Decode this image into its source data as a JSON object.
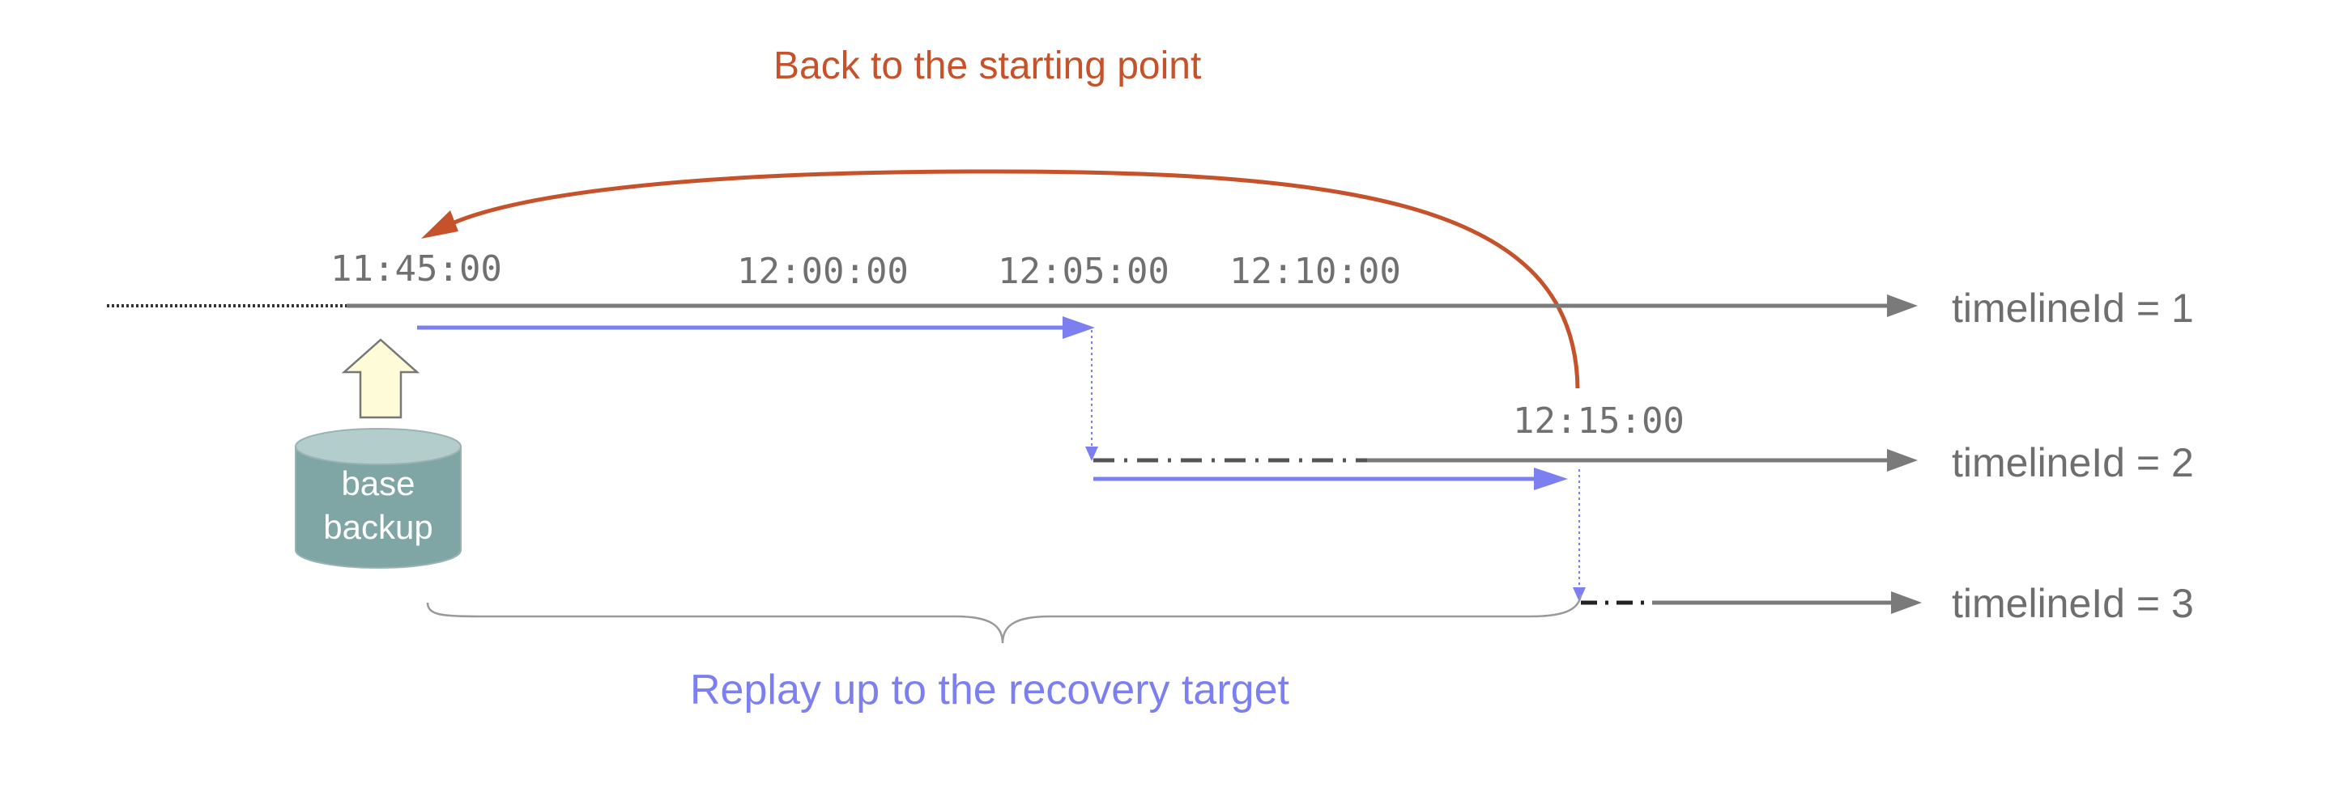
{
  "colors": {
    "timeline": "#7a7a7a",
    "replay": "#7b7ff0",
    "back": "#c5522a",
    "cylinder_body": "#7fa6a4",
    "cylinder_top": "#b3cccc",
    "up_arrow_fill": "#fdfbd8"
  },
  "captions": {
    "back_to_start": "Back to the starting point",
    "replay": "Replay up to the recovery target"
  },
  "times": {
    "t1145": "11:45:00",
    "t1200": "12:00:00",
    "t1205": "12:05:00",
    "t1210": "12:10:00",
    "t1215": "12:15:00"
  },
  "timelines": {
    "tl1": "timelineId = 1",
    "tl2": "timelineId = 2",
    "tl3": "timelineId = 3"
  },
  "base_backup": {
    "line1": "base",
    "line2": "backup"
  },
  "icons": {
    "up_arrow": "up-arrow-icon",
    "database": "database-cylinder-icon"
  }
}
